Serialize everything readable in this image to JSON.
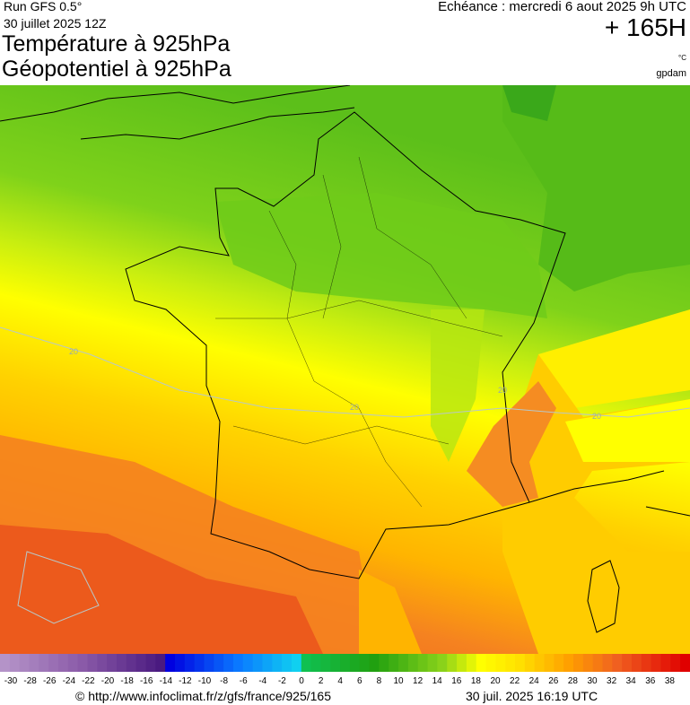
{
  "header": {
    "run": "Run GFS 0.5°",
    "run_date": "30 juillet 2025 12Z",
    "echeance": "Echéance : mercredi 6 aout 2025 9h UTC",
    "lead": "+ 165H",
    "title1": "Température à 925hPa",
    "title2": "Géopotentiel à 925hPa",
    "unit": "°C",
    "unit2": "gpdam"
  },
  "map": {
    "contour_labels": [
      20,
      20,
      20,
      20
    ]
  },
  "colorbar": {
    "labels": [
      -30,
      -28,
      -26,
      -24,
      -22,
      -20,
      -18,
      -16,
      -14,
      -12,
      -10,
      -8,
      -6,
      -4,
      -2,
      0,
      2,
      4,
      6,
      8,
      10,
      12,
      14,
      16,
      18,
      20,
      22,
      24,
      26,
      28,
      30,
      32,
      34,
      36,
      38
    ]
  },
  "footer": {
    "source": "© http://www.infoclimat.fr/z/gfs/france/925/165",
    "timestamp": "30 juil. 2025 16:19 UTC"
  }
}
